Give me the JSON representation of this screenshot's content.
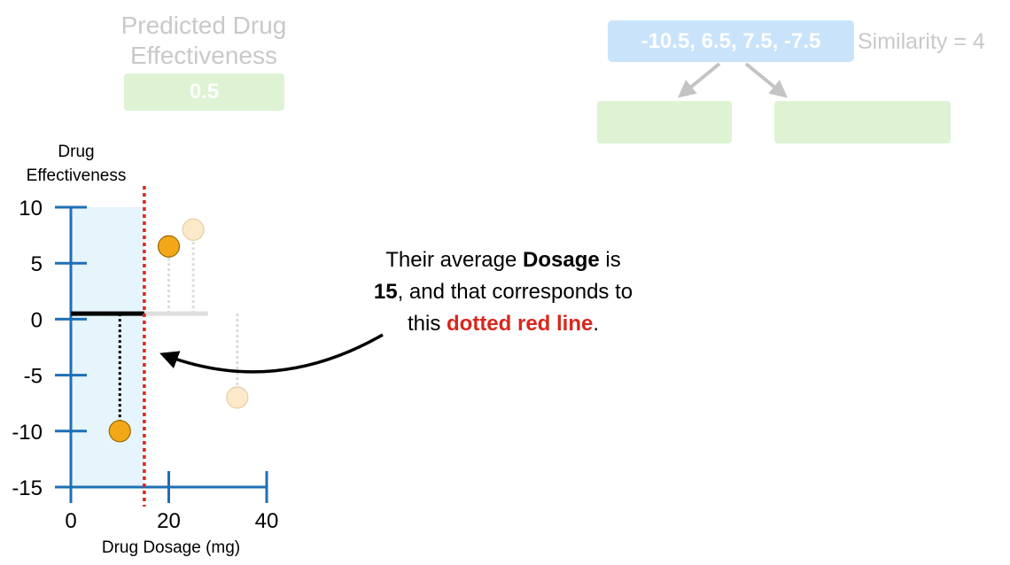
{
  "prediction_panel": {
    "title_line1": "Predicted Drug",
    "title_line2": "Effectiveness",
    "value": "0.5"
  },
  "tree_panel": {
    "root_residuals": "-10.5, 6.5, 7.5, -7.5",
    "similarity_label": "Similarity = 4"
  },
  "callout": {
    "part1": "Their average ",
    "bold1": "Dosage",
    "part2": " is",
    "bold2": "15",
    "part3": ", and that corresponds to",
    "part4": "this ",
    "red_text": "dotted red line",
    "part5": "."
  },
  "chart_data": {
    "type": "scatter",
    "ylabel_line1": "Drug",
    "ylabel_line2": "Effectiveness",
    "xlabel": "Drug Dosage (mg)",
    "x_ticks": [
      "0",
      "20",
      "40"
    ],
    "y_ticks": [
      "10",
      "5",
      "0",
      "-5",
      "-10",
      "-15"
    ],
    "xlim": [
      0,
      40
    ],
    "ylim": [
      -15,
      10
    ],
    "threshold_x": 15,
    "prediction_y": 0.5,
    "points": [
      {
        "x": 10,
        "y": -10,
        "highlight": true
      },
      {
        "x": 20,
        "y": 6.5,
        "highlight": true
      },
      {
        "x": 25,
        "y": 8,
        "highlight": false
      },
      {
        "x": 34,
        "y": -7,
        "highlight": false
      }
    ],
    "colors": {
      "axis": "#1f6fb5",
      "point": "#f2a719",
      "point_faded": "#fbe9c9",
      "threshold": "#d8281e",
      "region": "#e6f4fb"
    }
  }
}
